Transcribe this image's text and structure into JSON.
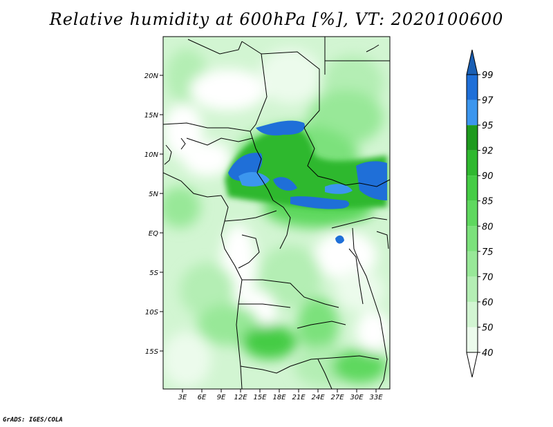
{
  "title": "Relative humidity at 600hPa [%], VT: 2020100600",
  "credit": "GrADS: IGES/COLA",
  "map": {
    "lat_labels": [
      "20N",
      "15N",
      "10N",
      "5N",
      "EQ",
      "5S",
      "10S",
      "15S"
    ],
    "lon_labels": [
      "3E",
      "6E",
      "9E",
      "12E",
      "15E",
      "18E",
      "21E",
      "24E",
      "27E",
      "30E",
      "33E"
    ]
  },
  "colorbar": {
    "levels": [
      "40",
      "50",
      "60",
      "70",
      "75",
      "80",
      "85",
      "90",
      "92",
      "95",
      "97",
      "99"
    ],
    "colors": [
      "#ecfbec",
      "#d2f5d2",
      "#b4eeb4",
      "#98e898",
      "#7ce17c",
      "#5fd85f",
      "#45cc45",
      "#2fb82f",
      "#1e9a1e",
      "#3c96ee",
      "#1f6fd8",
      "#1a5fb4"
    ]
  }
}
